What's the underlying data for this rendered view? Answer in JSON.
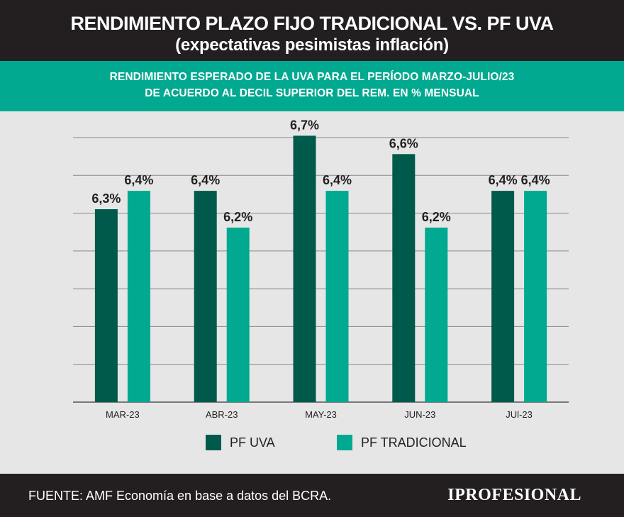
{
  "header": {
    "title": "RENDIMIENTO PLAZO FIJO TRADICIONAL VS. PF UVA",
    "subtitle": "(expectativas pesimistas inflación)"
  },
  "subheader": {
    "line1": "RENDIMIENTO ESPERADO DE LA UVA PARA EL PERÍODO MARZO-JULIO/23",
    "line2": "DE ACUERDO AL DECIL SUPERIOR DEL REM. EN % MENSUAL"
  },
  "colors": {
    "header_bg": "#231f20",
    "band_bg": "#00a98f",
    "chart_bg": "#e6e6e6",
    "pf_uva": "#005a4b",
    "pf_tradicional": "#00a98f",
    "gridline": "#888888"
  },
  "chart_data": {
    "type": "bar",
    "categories": [
      "MAR-23",
      "ABR-23",
      "MAY-23",
      "JUN-23",
      "JUl-23"
    ],
    "series": [
      {
        "name": "PF UVA",
        "values": [
          6.3,
          6.4,
          6.7,
          6.6,
          6.4
        ],
        "labels": [
          "6,3%",
          "6,4%",
          "6,7%",
          "6,6%",
          "6,4%"
        ],
        "color": "#005a4b"
      },
      {
        "name": "PF TRADICIONAL",
        "values": [
          6.4,
          6.2,
          6.4,
          6.2,
          6.4
        ],
        "labels": [
          "6,4%",
          "6,2%",
          "6,4%",
          "6,2%",
          "6,4%"
        ],
        "color": "#00a98f"
      }
    ],
    "grid": true,
    "legend": "bottom"
  },
  "footer": {
    "source": "FUENTE: AMF Economía en base a datos del BCRA.",
    "logo_text": "IPROFESIONAL"
  }
}
